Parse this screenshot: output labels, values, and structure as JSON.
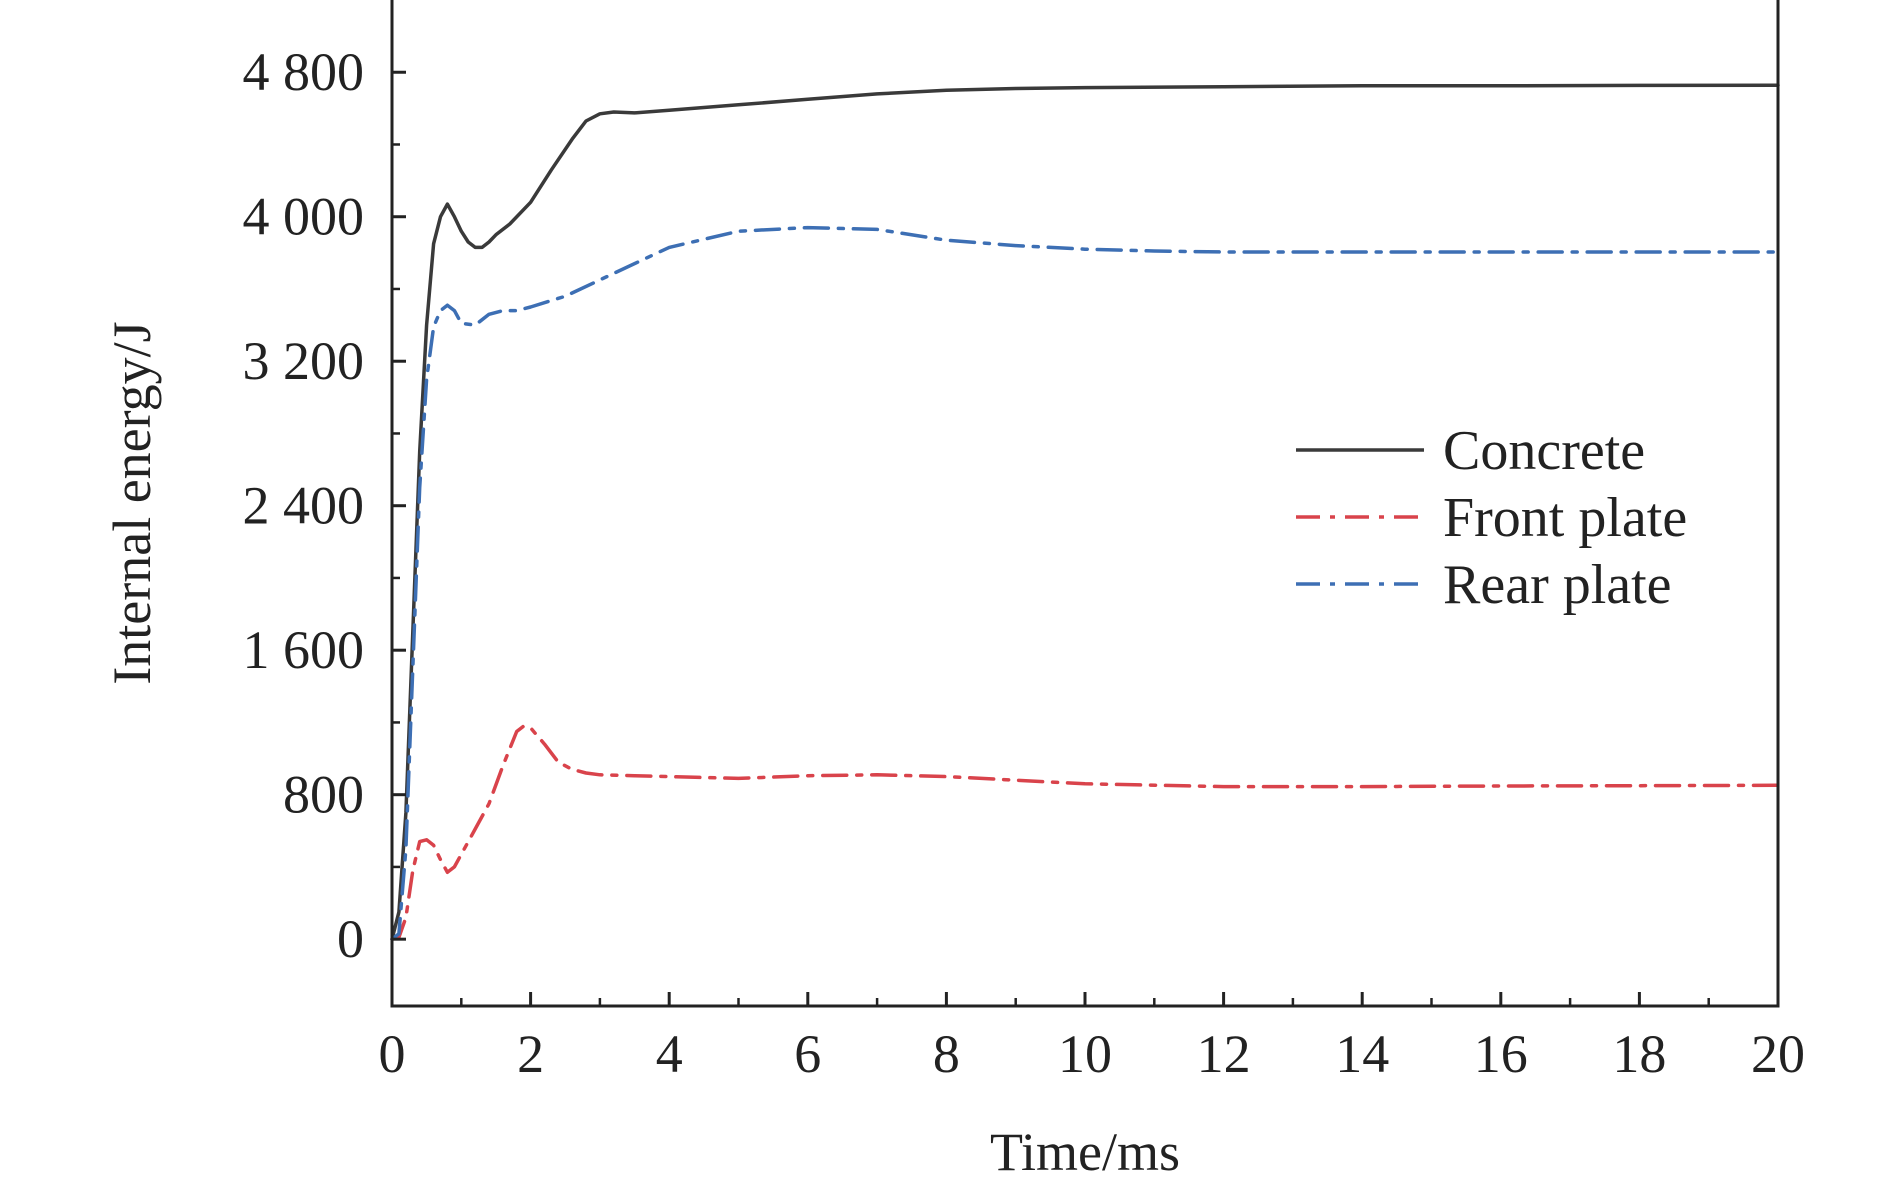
{
  "chart_data": {
    "type": "line",
    "title": "",
    "xlabel": "Time/ms",
    "ylabel": "Internal energy/J",
    "xlim": [
      0,
      20
    ],
    "ylim": [
      -370,
      5200
    ],
    "xticks": [
      0,
      2,
      4,
      6,
      8,
      10,
      12,
      14,
      16,
      18,
      20
    ],
    "xtick_labels": [
      "0",
      "2",
      "4",
      "6",
      "8",
      "10",
      "12",
      "14",
      "16",
      "18",
      "20"
    ],
    "yticks": [
      0,
      800,
      1600,
      2400,
      3200,
      4000,
      4800
    ],
    "ytick_labels": [
      "0",
      "800",
      "1 600",
      "2 400",
      "3 200",
      "4 000",
      "4 800"
    ],
    "grid": false,
    "legend_position": "right",
    "series": [
      {
        "name": "Concrete",
        "color": "#3a3a3a",
        "dash": "solid",
        "x": [
          0,
          0.1,
          0.2,
          0.3,
          0.4,
          0.5,
          0.6,
          0.7,
          0.8,
          0.9,
          1.0,
          1.1,
          1.2,
          1.3,
          1.4,
          1.5,
          1.7,
          2.0,
          2.3,
          2.6,
          2.8,
          3.0,
          3.2,
          3.5,
          4.0,
          5.0,
          6.0,
          7.0,
          8.0,
          9.0,
          10.0,
          12.0,
          14.0,
          16.0,
          18.0,
          20.0
        ],
        "y": [
          0,
          150,
          700,
          1700,
          2700,
          3400,
          3850,
          4000,
          4070,
          4000,
          3920,
          3860,
          3830,
          3830,
          3860,
          3900,
          3960,
          4080,
          4260,
          4430,
          4530,
          4570,
          4580,
          4575,
          4590,
          4620,
          4650,
          4680,
          4700,
          4710,
          4715,
          4720,
          4725,
          4725,
          4727,
          4728
        ]
      },
      {
        "name": "Front plate",
        "color": "#d9434b",
        "dash": "24,10,5,10",
        "x": [
          0,
          0.1,
          0.2,
          0.3,
          0.4,
          0.5,
          0.6,
          0.7,
          0.8,
          0.9,
          1.0,
          1.2,
          1.4,
          1.6,
          1.8,
          1.9,
          2.0,
          2.2,
          2.4,
          2.6,
          2.8,
          3.0,
          3.5,
          4.0,
          5.0,
          6.0,
          7.0,
          8.0,
          9.0,
          10.0,
          12.0,
          14.0,
          16.0,
          18.0,
          20.0
        ],
        "y": [
          0,
          10,
          120,
          380,
          540,
          550,
          520,
          440,
          370,
          400,
          470,
          610,
          750,
          960,
          1150,
          1180,
          1170,
          1080,
          980,
          940,
          920,
          910,
          905,
          900,
          890,
          905,
          910,
          900,
          880,
          860,
          845,
          845,
          848,
          850,
          852
        ]
      },
      {
        "name": "Rear plate",
        "color": "#3d6fb4",
        "dash": "24,10,5,10",
        "x": [
          0,
          0.1,
          0.2,
          0.3,
          0.4,
          0.5,
          0.6,
          0.7,
          0.8,
          0.9,
          1.0,
          1.2,
          1.4,
          1.6,
          1.8,
          2.0,
          2.5,
          3.0,
          4.0,
          5.0,
          6.0,
          7.0,
          8.0,
          9.0,
          10.0,
          11.0,
          12.0,
          14.0,
          16.0,
          18.0,
          20.0
        ],
        "y": [
          0,
          30,
          500,
          1500,
          2500,
          3100,
          3390,
          3480,
          3510,
          3480,
          3410,
          3400,
          3460,
          3480,
          3480,
          3500,
          3560,
          3650,
          3830,
          3920,
          3940,
          3930,
          3870,
          3840,
          3820,
          3810,
          3805,
          3805,
          3805,
          3805,
          3805
        ]
      }
    ]
  }
}
